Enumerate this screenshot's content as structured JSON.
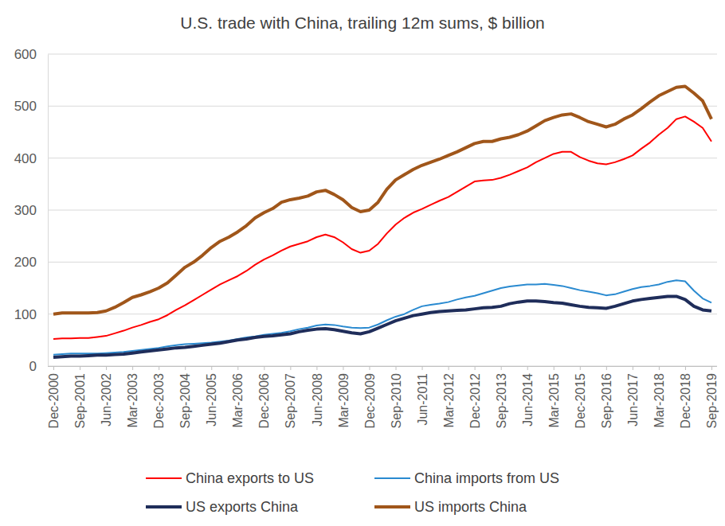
{
  "chart_data": {
    "type": "line",
    "title": "U.S. trade with China, trailing 12m sums, $ billion",
    "categories": [
      "Dec-2000",
      null,
      null,
      "Sep-2001",
      null,
      null,
      "Jun-2002",
      null,
      null,
      "Mar-2003",
      null,
      null,
      "Dec-2003",
      null,
      null,
      "Sep-2004",
      null,
      null,
      "Jun-2005",
      null,
      null,
      "Mar-2006",
      null,
      null,
      "Dec-2006",
      null,
      null,
      "Sep-2007",
      null,
      null,
      "Jun-2008",
      null,
      null,
      "Mar-2009",
      null,
      null,
      "Dec-2009",
      null,
      null,
      "Sep-2010",
      null,
      null,
      "Jun-2011",
      null,
      null,
      "Mar-2012",
      null,
      null,
      "Dec-2012",
      null,
      null,
      "Sep-2013",
      null,
      null,
      "Jun-2014",
      null,
      null,
      "Mar-2015",
      null,
      null,
      "Dec-2015",
      null,
      null,
      "Sep-2016",
      null,
      null,
      "Jun-2017",
      null,
      null,
      "Mar-2018",
      null,
      null,
      "Dec-2018",
      null,
      null,
      "Sep-2019"
    ],
    "series": [
      {
        "name": "China exports to US",
        "color": "#ff0000",
        "line_style": "thin",
        "values": [
          52,
          53,
          53,
          54,
          54,
          56,
          58,
          63,
          68,
          74,
          79,
          85,
          90,
          98,
          108,
          117,
          127,
          137,
          147,
          157,
          165,
          173,
          183,
          195,
          205,
          213,
          222,
          230,
          235,
          240,
          248,
          253,
          248,
          238,
          225,
          218,
          222,
          235,
          255,
          272,
          285,
          295,
          302,
          310,
          318,
          325,
          335,
          345,
          355,
          357,
          358,
          362,
          368,
          375,
          382,
          392,
          400,
          408,
          412,
          412,
          402,
          395,
          390,
          388,
          392,
          398,
          405,
          418,
          430,
          445,
          458,
          475,
          480,
          470,
          458,
          432
        ]
      },
      {
        "name": "China imports from US",
        "color": "#2a8ad0",
        "line_style": "thin",
        "values": [
          22,
          23,
          24,
          24,
          24,
          24,
          25,
          26,
          27,
          29,
          31,
          33,
          35,
          38,
          40,
          42,
          43,
          44,
          45,
          47,
          49,
          52,
          55,
          57,
          60,
          62,
          64,
          67,
          71,
          74,
          78,
          80,
          79,
          76,
          74,
          73,
          74,
          80,
          88,
          95,
          100,
          108,
          115,
          118,
          120,
          123,
          128,
          132,
          135,
          140,
          145,
          150,
          153,
          155,
          157,
          157,
          158,
          156,
          154,
          150,
          146,
          143,
          140,
          136,
          138,
          143,
          148,
          152,
          154,
          157,
          162,
          165,
          163,
          145,
          130,
          122
        ]
      },
      {
        "name": "US exports China",
        "color": "#1f2d5a",
        "line_style": "thick",
        "values": [
          17,
          18,
          19,
          19,
          20,
          21,
          21,
          22,
          23,
          25,
          27,
          29,
          31,
          33,
          35,
          36,
          38,
          40,
          42,
          44,
          47,
          50,
          52,
          55,
          57,
          58,
          60,
          62,
          66,
          69,
          71,
          72,
          70,
          67,
          64,
          62,
          66,
          73,
          80,
          87,
          92,
          97,
          100,
          103,
          105,
          106,
          107,
          108,
          110,
          112,
          113,
          115,
          120,
          123,
          125,
          125,
          124,
          122,
          121,
          118,
          115,
          113,
          112,
          111,
          115,
          120,
          125,
          128,
          130,
          132,
          134,
          134,
          128,
          115,
          108,
          106
        ]
      },
      {
        "name": "US imports China",
        "color": "#a0561a",
        "line_style": "thick",
        "values": [
          100,
          102,
          102,
          102,
          102,
          103,
          106,
          113,
          122,
          132,
          137,
          143,
          150,
          160,
          175,
          190,
          200,
          213,
          228,
          240,
          248,
          258,
          270,
          285,
          295,
          303,
          315,
          320,
          323,
          327,
          335,
          338,
          330,
          320,
          305,
          297,
          300,
          315,
          340,
          358,
          368,
          378,
          386,
          392,
          398,
          405,
          412,
          420,
          428,
          432,
          432,
          437,
          440,
          445,
          452,
          462,
          472,
          478,
          483,
          485,
          478,
          470,
          465,
          460,
          465,
          475,
          483,
          495,
          508,
          520,
          528,
          536,
          538,
          525,
          510,
          475
        ]
      }
    ],
    "ylim": [
      0,
      600
    ],
    "yticks": [
      0,
      100,
      200,
      300,
      400,
      500,
      600
    ],
    "grid": true,
    "legend": "bottom"
  }
}
